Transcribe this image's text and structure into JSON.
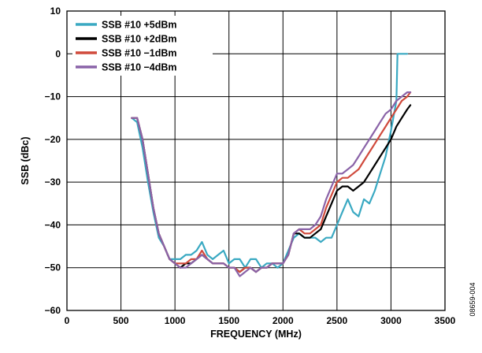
{
  "chart_data": {
    "type": "line",
    "title": "",
    "xlabel": "FREQUENCY (MHz)",
    "ylabel": "SSB (dBc)",
    "xlim": [
      0,
      3500
    ],
    "ylim": [
      -60,
      10
    ],
    "x_ticks": [
      0,
      500,
      1000,
      1500,
      2000,
      2500,
      3000,
      3500
    ],
    "x_tick_labels": [
      "0",
      "500",
      "1000",
      "1500",
      "2000",
      "2500",
      "3000",
      "3500"
    ],
    "y_ticks": [
      10,
      0,
      -10,
      -20,
      -30,
      -40,
      -50,
      -60
    ],
    "y_tick_labels": [
      "10",
      "0",
      "−10",
      "−20",
      "−30",
      "−40",
      "−50",
      "−60"
    ],
    "grid": true,
    "legend_position": "top-left",
    "series": [
      {
        "name": "SSB #10 +5dBm",
        "color": "#3aa9c2",
        "x": [
          600,
          650,
          700,
          750,
          800,
          850,
          900,
          950,
          1000,
          1050,
          1100,
          1150,
          1200,
          1250,
          1300,
          1350,
          1400,
          1450,
          1500,
          1550,
          1600,
          1650,
          1700,
          1750,
          1800,
          1850,
          1900,
          1950,
          2000,
          2050,
          2100,
          2150,
          2200,
          2250,
          2300,
          2350,
          2400,
          2450,
          2500,
          2550,
          2600,
          2650,
          2700,
          2750,
          2800,
          2850,
          2900,
          2950,
          3000,
          3050,
          3060,
          3100,
          3150
        ],
        "y": [
          -15,
          -16,
          -22,
          -30,
          -37,
          -43,
          -45,
          -48,
          -48,
          -48,
          -47,
          -47,
          -46,
          -44,
          -47,
          -48,
          -47,
          -46,
          -49,
          -48,
          -48,
          -50,
          -48,
          -48,
          -50,
          -49,
          -49,
          -50,
          -49,
          -46,
          -43,
          -42,
          -43,
          -43,
          -43,
          -44,
          -43,
          -43,
          -40,
          -37,
          -34,
          -37,
          -38,
          -34,
          -35,
          -32,
          -28,
          -24,
          -18,
          -11,
          0,
          0,
          0
        ]
      },
      {
        "name": "SSB #10 +2dBm",
        "color": "#000000",
        "x": [
          600,
          650,
          700,
          750,
          800,
          850,
          900,
          950,
          1000,
          1050,
          1100,
          1150,
          1200,
          1250,
          1300,
          1350,
          1400,
          1450,
          1500,
          1550,
          1600,
          1650,
          1700,
          1750,
          1800,
          1850,
          1900,
          1950,
          2000,
          2050,
          2100,
          2150,
          2200,
          2250,
          2300,
          2350,
          2400,
          2450,
          2500,
          2550,
          2600,
          2650,
          2700,
          2750,
          2800,
          2850,
          2900,
          2950,
          3000,
          3050,
          3100,
          3150,
          3180
        ],
        "y": [
          -15,
          -15,
          -20,
          -28,
          -36,
          -42,
          -45,
          -48,
          -49,
          -50,
          -49,
          -49,
          -48,
          -47,
          -48,
          -49,
          -49,
          -49,
          -50,
          -50,
          -51,
          -50,
          -50,
          -51,
          -50,
          -50,
          -49,
          -49,
          -49,
          -47,
          -42,
          -42,
          -43,
          -43,
          -42,
          -41,
          -38,
          -35,
          -32,
          -31,
          -31,
          -32,
          -31,
          -30,
          -28,
          -26,
          -24,
          -22,
          -20,
          -17,
          -15,
          -13,
          -12
        ]
      },
      {
        "name": "SSB #10 −1dBm",
        "color": "#d04a3c",
        "x": [
          600,
          650,
          700,
          750,
          800,
          850,
          900,
          950,
          1000,
          1050,
          1100,
          1150,
          1200,
          1250,
          1300,
          1350,
          1400,
          1450,
          1500,
          1550,
          1600,
          1650,
          1700,
          1750,
          1800,
          1850,
          1900,
          1950,
          2000,
          2050,
          2100,
          2150,
          2200,
          2250,
          2300,
          2350,
          2400,
          2450,
          2500,
          2550,
          2600,
          2650,
          2700,
          2750,
          2800,
          2850,
          2900,
          2950,
          3000,
          3050,
          3100,
          3150,
          3180
        ],
        "y": [
          -15,
          -15,
          -20,
          -28,
          -36,
          -42,
          -45,
          -48,
          -49,
          -49,
          -49,
          -48,
          -48,
          -46,
          -48,
          -49,
          -49,
          -49,
          -50,
          -50,
          -51,
          -50,
          -50,
          -51,
          -50,
          -50,
          -49,
          -49,
          -49,
          -47,
          -42,
          -41,
          -42,
          -42,
          -41,
          -40,
          -36,
          -33,
          -30,
          -29,
          -29,
          -28,
          -27,
          -25,
          -23,
          -21,
          -19,
          -17,
          -15,
          -13,
          -11,
          -10,
          -9
        ]
      },
      {
        "name": "SSB #10 −4dBm",
        "color": "#8a63a8",
        "x": [
          600,
          650,
          700,
          750,
          800,
          850,
          900,
          950,
          1000,
          1050,
          1100,
          1150,
          1200,
          1250,
          1300,
          1350,
          1400,
          1450,
          1500,
          1550,
          1600,
          1650,
          1700,
          1750,
          1800,
          1850,
          1900,
          1950,
          2000,
          2050,
          2100,
          2150,
          2200,
          2250,
          2300,
          2350,
          2400,
          2450,
          2500,
          2550,
          2600,
          2650,
          2700,
          2750,
          2800,
          2850,
          2900,
          2950,
          3000,
          3050,
          3100,
          3150,
          3180
        ],
        "y": [
          -15,
          -15,
          -20,
          -28,
          -36,
          -42,
          -45,
          -48,
          -49,
          -50,
          -50,
          -49,
          -48,
          -47,
          -48,
          -49,
          -49,
          -49,
          -50,
          -50,
          -52,
          -51,
          -50,
          -51,
          -50,
          -50,
          -49,
          -49,
          -49,
          -47,
          -42,
          -41,
          -41,
          -41,
          -40,
          -38,
          -34,
          -31,
          -28,
          -28,
          -27,
          -26,
          -24,
          -22,
          -20,
          -18,
          -16,
          -14,
          -13,
          -11,
          -10,
          -9,
          -9
        ]
      }
    ]
  },
  "figure_id": "08659-004"
}
